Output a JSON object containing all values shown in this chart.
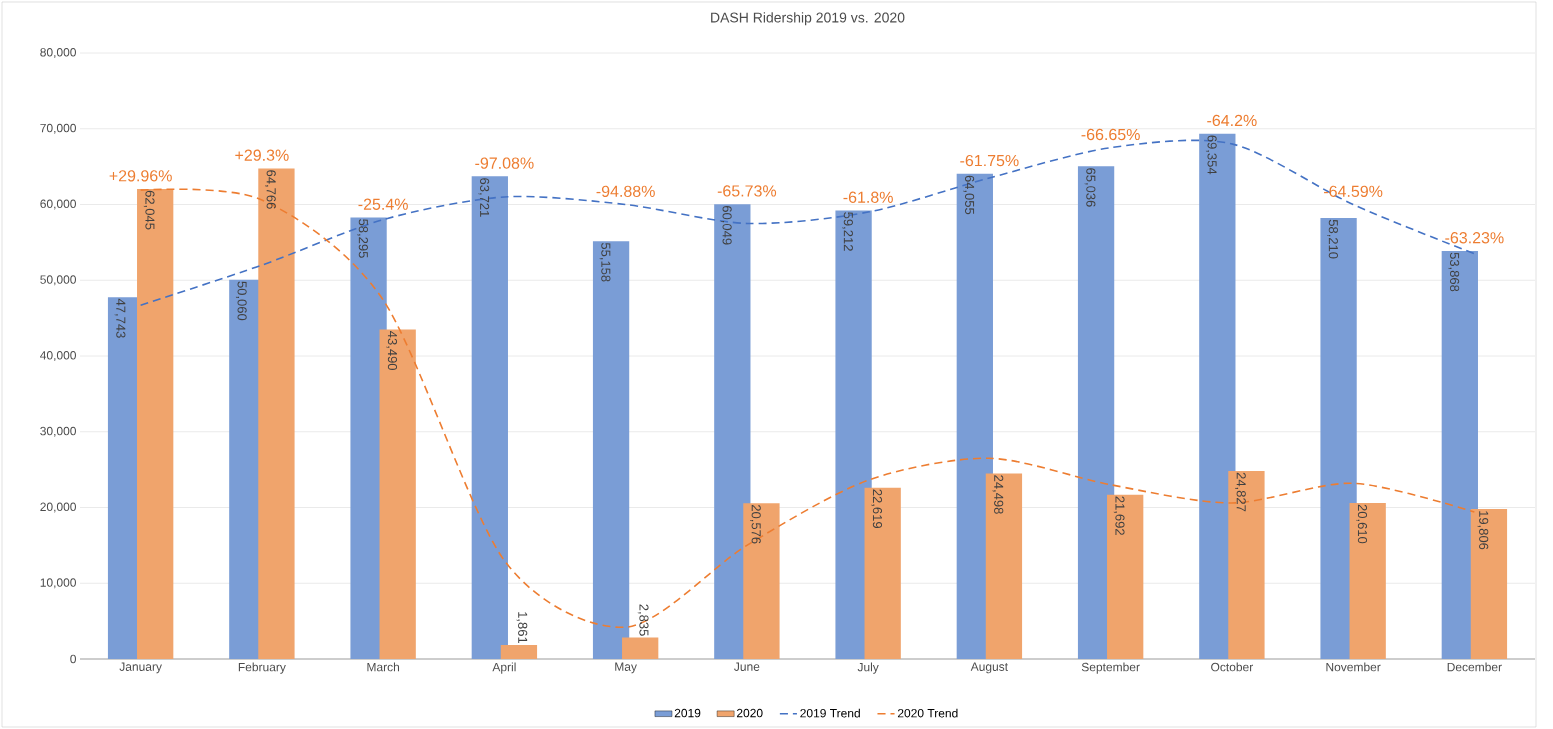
{
  "chart_data": {
    "type": "bar",
    "title": "DASH Ridership 2019 vs. 2020",
    "categories": [
      "January",
      "February",
      "March",
      "April",
      "May",
      "June",
      "July",
      "August",
      "September",
      "October",
      "November",
      "December"
    ],
    "series": [
      {
        "name": "2019",
        "color": "#7a9dd6",
        "values": [
          47743,
          50060,
          58295,
          63721,
          55158,
          60049,
          59212,
          64055,
          65036,
          69354,
          58210,
          53868
        ],
        "value_labels": [
          "47,743",
          "50,060",
          "58,295",
          "63,721",
          "55,158",
          "60,049",
          "59,212",
          "64,055",
          "65,036",
          "69,354",
          "58,210",
          "53,868"
        ]
      },
      {
        "name": "2020",
        "color": "#f0a46c",
        "values": [
          62045,
          64766,
          43490,
          1861,
          2835,
          20576,
          22619,
          24498,
          21692,
          24827,
          20610,
          19806
        ],
        "value_labels": [
          "62,045",
          "64,766",
          "43,490",
          "1,861",
          "2,835",
          "20,576",
          "22,619",
          "24,498",
          "21,692",
          "24,827",
          "20,610",
          "19,806"
        ]
      },
      {
        "name": "2019 Trend",
        "type": "line",
        "color": "#4472c4",
        "line_style": "dashed",
        "values": [
          46700,
          52000,
          58000,
          61000,
          60000,
          57500,
          59000,
          63500,
          67500,
          68000,
          60000,
          53500
        ]
      },
      {
        "name": "2020 Trend",
        "type": "line",
        "color": "#ed7d31",
        "line_style": "dashed",
        "values": [
          61900,
          60600,
          47400,
          13000,
          4200,
          15000,
          23600,
          26500,
          23000,
          20600,
          23200,
          19400
        ]
      }
    ],
    "ylim": [
      0,
      80000
    ],
    "yticks": [
      {
        "value": 0,
        "label": "0"
      },
      {
        "value": 10000,
        "label": "10,000"
      },
      {
        "value": 20000,
        "label": "20,000"
      },
      {
        "value": 30000,
        "label": "30,000"
      },
      {
        "value": 40000,
        "label": "40,000"
      },
      {
        "value": 50000,
        "label": "50,000"
      },
      {
        "value": 60000,
        "label": "60,000"
      },
      {
        "value": 70000,
        "label": "70,000"
      },
      {
        "value": 80000,
        "label": "80,000"
      }
    ],
    "grid": "y",
    "legend": "bottom",
    "annotations": [
      "+29.96%",
      "+29.3%",
      "-25.4%",
      "-97.08%",
      "-94.88%",
      "-65.73%",
      "-61.8%",
      "-61.75%",
      "-66.65%",
      "-64.2%",
      "-64.59%",
      "-63.23%"
    ]
  }
}
